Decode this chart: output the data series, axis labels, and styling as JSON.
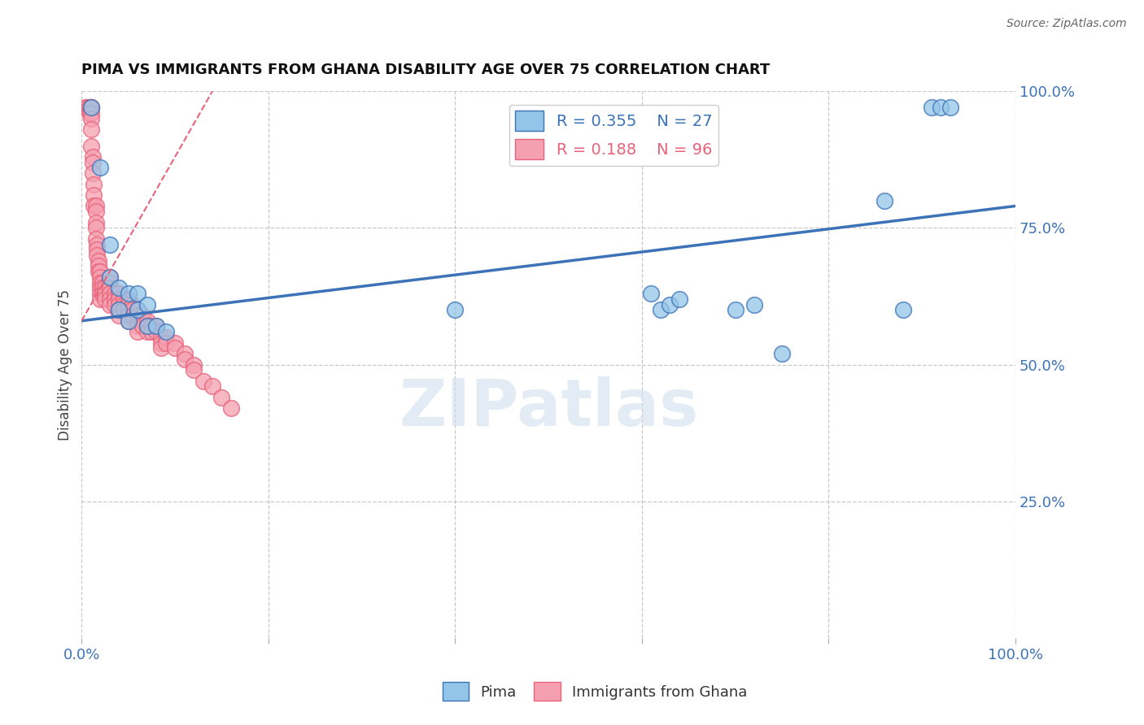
{
  "title": "PIMA VS IMMIGRANTS FROM GHANA DISABILITY AGE OVER 75 CORRELATION CHART",
  "source": "Source: ZipAtlas.com",
  "ylabel": "Disability Age Over 75",
  "x_min": 0.0,
  "x_max": 1.0,
  "y_min": 0.0,
  "y_max": 1.0,
  "x_ticks": [
    0.0,
    0.2,
    0.4,
    0.6,
    0.8,
    1.0
  ],
  "y_tick_labels": [
    "100.0%",
    "75.0%",
    "50.0%",
    "25.0%"
  ],
  "y_ticks": [
    1.0,
    0.75,
    0.5,
    0.25
  ],
  "pima_R": "0.355",
  "pima_N": "27",
  "ghana_R": "0.188",
  "ghana_N": "96",
  "blue_color": "#93C5E8",
  "pink_color": "#F5A0B0",
  "trend_blue": "#3B72B8",
  "trend_pink": "#E8637A",
  "pima_x": [
    0.01,
    0.02,
    0.03,
    0.03,
    0.04,
    0.04,
    0.05,
    0.05,
    0.06,
    0.06,
    0.07,
    0.07,
    0.08,
    0.09,
    0.4,
    0.61,
    0.62,
    0.63,
    0.64,
    0.7,
    0.72,
    0.75,
    0.86,
    0.88,
    0.91,
    0.92,
    0.93
  ],
  "pima_y": [
    0.97,
    0.86,
    0.72,
    0.66,
    0.64,
    0.6,
    0.63,
    0.58,
    0.63,
    0.6,
    0.61,
    0.57,
    0.57,
    0.56,
    0.6,
    0.63,
    0.6,
    0.61,
    0.62,
    0.6,
    0.61,
    0.52,
    0.8,
    0.6,
    0.97,
    0.97,
    0.97
  ],
  "ghana_x": [
    0.005,
    0.005,
    0.008,
    0.008,
    0.008,
    0.01,
    0.01,
    0.01,
    0.01,
    0.01,
    0.01,
    0.012,
    0.012,
    0.012,
    0.013,
    0.013,
    0.013,
    0.015,
    0.015,
    0.015,
    0.015,
    0.015,
    0.016,
    0.016,
    0.016,
    0.018,
    0.018,
    0.018,
    0.02,
    0.02,
    0.02,
    0.02,
    0.02,
    0.02,
    0.022,
    0.022,
    0.022,
    0.025,
    0.025,
    0.025,
    0.03,
    0.03,
    0.03,
    0.03,
    0.03,
    0.03,
    0.035,
    0.035,
    0.035,
    0.04,
    0.04,
    0.04,
    0.04,
    0.04,
    0.04,
    0.045,
    0.045,
    0.045,
    0.05,
    0.05,
    0.05,
    0.05,
    0.05,
    0.055,
    0.055,
    0.055,
    0.06,
    0.06,
    0.06,
    0.06,
    0.06,
    0.065,
    0.065,
    0.065,
    0.07,
    0.07,
    0.07,
    0.075,
    0.075,
    0.08,
    0.08,
    0.085,
    0.085,
    0.085,
    0.09,
    0.09,
    0.1,
    0.1,
    0.11,
    0.11,
    0.12,
    0.12,
    0.13,
    0.14,
    0.15,
    0.16
  ],
  "ghana_y": [
    0.97,
    0.97,
    0.97,
    0.97,
    0.96,
    0.97,
    0.97,
    0.96,
    0.95,
    0.93,
    0.9,
    0.88,
    0.87,
    0.85,
    0.83,
    0.81,
    0.79,
    0.79,
    0.78,
    0.76,
    0.75,
    0.73,
    0.72,
    0.71,
    0.7,
    0.69,
    0.68,
    0.67,
    0.67,
    0.66,
    0.65,
    0.64,
    0.63,
    0.62,
    0.65,
    0.64,
    0.63,
    0.64,
    0.63,
    0.62,
    0.66,
    0.65,
    0.64,
    0.63,
    0.62,
    0.61,
    0.63,
    0.62,
    0.61,
    0.63,
    0.63,
    0.62,
    0.61,
    0.6,
    0.59,
    0.62,
    0.61,
    0.6,
    0.62,
    0.61,
    0.6,
    0.59,
    0.58,
    0.61,
    0.6,
    0.59,
    0.6,
    0.59,
    0.58,
    0.57,
    0.56,
    0.59,
    0.58,
    0.57,
    0.58,
    0.57,
    0.56,
    0.57,
    0.56,
    0.57,
    0.56,
    0.55,
    0.54,
    0.53,
    0.55,
    0.54,
    0.54,
    0.53,
    0.52,
    0.51,
    0.5,
    0.49,
    0.47,
    0.46,
    0.44,
    0.42
  ],
  "blue_trendline": [
    0.58,
    0.79
  ],
  "pink_trendline_x": [
    0.0,
    0.13
  ],
  "pink_trendline_y": [
    0.58,
    0.97
  ]
}
